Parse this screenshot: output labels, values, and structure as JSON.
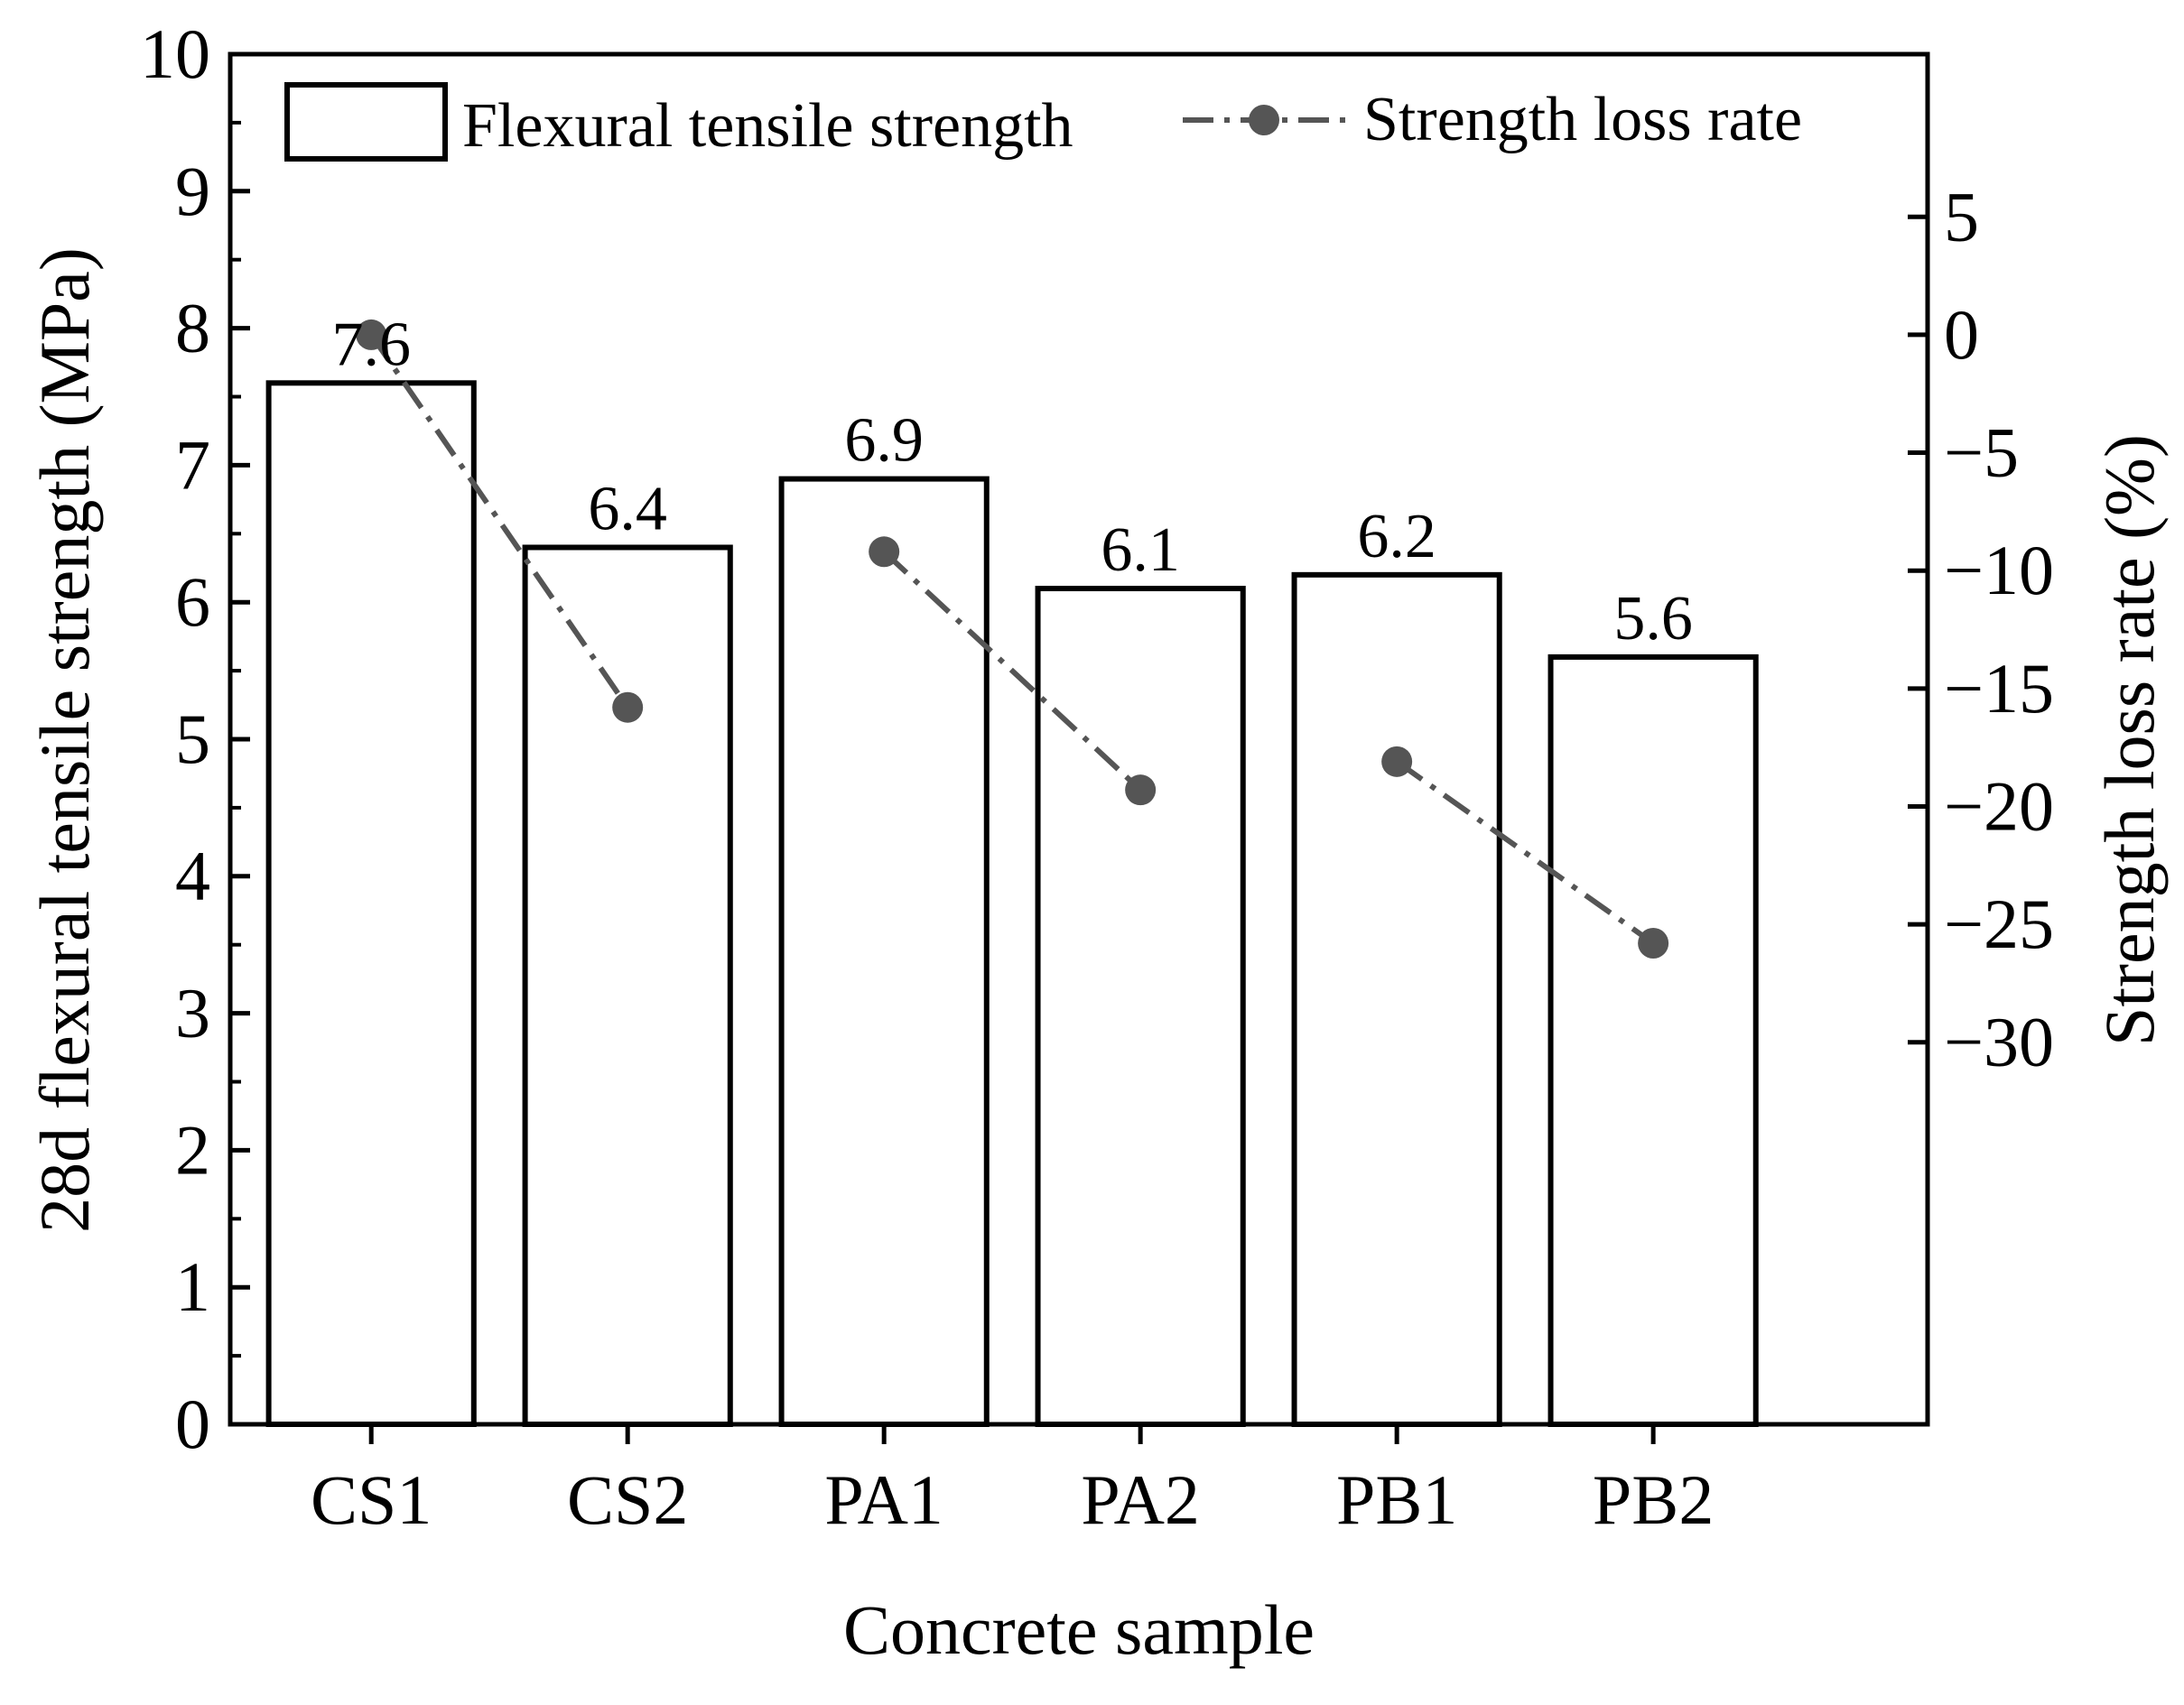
{
  "chart_data": {
    "type": "bar",
    "categories": [
      "CS1",
      "CS2",
      "PA1",
      "PA2",
      "PB1",
      "PB2"
    ],
    "series": [
      {
        "name": "Flexural tensile strength",
        "kind": "bar",
        "axis": "left",
        "values": [
          7.6,
          6.4,
          6.9,
          6.1,
          6.2,
          5.6
        ],
        "labels": [
          "7.6",
          "6.4",
          "6.9",
          "6.1",
          "6.2",
          "5.6"
        ]
      },
      {
        "name": "Strength loss rate",
        "kind": "line",
        "axis": "right",
        "style": "dash-dot",
        "values": [
          0,
          -15.8,
          -9.2,
          -19.3,
          -18.1,
          -25.8
        ]
      }
    ],
    "xlabel": "Concrete sample",
    "ylabel": "28d flexural tensile strength (MPa)",
    "y2label": "Strength loss rate (%)",
    "ylim": [
      0,
      10
    ],
    "yticks": [
      0,
      1,
      2,
      3,
      4,
      5,
      6,
      7,
      8,
      9,
      10
    ],
    "ytick_labels": [
      "0",
      "1",
      "2",
      "3",
      "4",
      "5",
      "6",
      "7",
      "8",
      "9",
      "10"
    ],
    "y2lim": [
      -46.2,
      11.9
    ],
    "y2ticks": [
      5,
      0,
      -5,
      -10,
      -15,
      -20,
      -25,
      -30
    ],
    "y2tick_labels": [
      "5",
      "0",
      "−5",
      "−10",
      "−15",
      "−20",
      "−25",
      "−30"
    ],
    "legend": {
      "position": "top",
      "entries": [
        "Flexural tensile strength",
        "Strength loss rate"
      ]
    },
    "grid": false,
    "colors": {
      "bar_fill": "#ffffff",
      "bar_stroke": "#000000",
      "line": "#555555",
      "marker": "#555555"
    }
  }
}
